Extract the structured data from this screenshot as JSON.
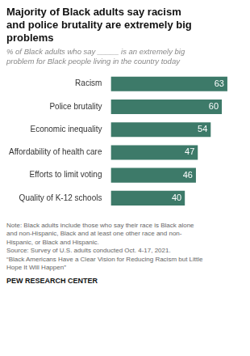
{
  "chart_data": {
    "type": "bar",
    "orientation": "horizontal",
    "title": "Majority of Black adults say racism\nand police brutality are extremely big\nproblems",
    "subtitle": "% of Black adults who say _____ is an extremely big\nproblem for Black people living in the country today",
    "categories": [
      "Racism",
      "Police brutality",
      "Economic inequality",
      "Affordability of health care",
      "Efforts to limit voting",
      "Quality of K-12 schools"
    ],
    "values": [
      63,
      60,
      54,
      47,
      46,
      40
    ],
    "color": "#3d7a69",
    "xlim": [
      0,
      70
    ],
    "grid": false,
    "tick_labels": "y",
    "data_labels": true,
    "note": "Note: Black adults include those who say their race is Black alone\nand non-Hispanic, Black and at least one other race and non-\nHispanic, or Black and Hispanic.\nSource: Survey of U.S. adults conducted Oct. 4-17, 2021.\n“Black Americans Have a Clear Vision for Reducing Racism but Little\nHope It Will Happen”",
    "footer": "PEW RESEARCH CENTER"
  }
}
